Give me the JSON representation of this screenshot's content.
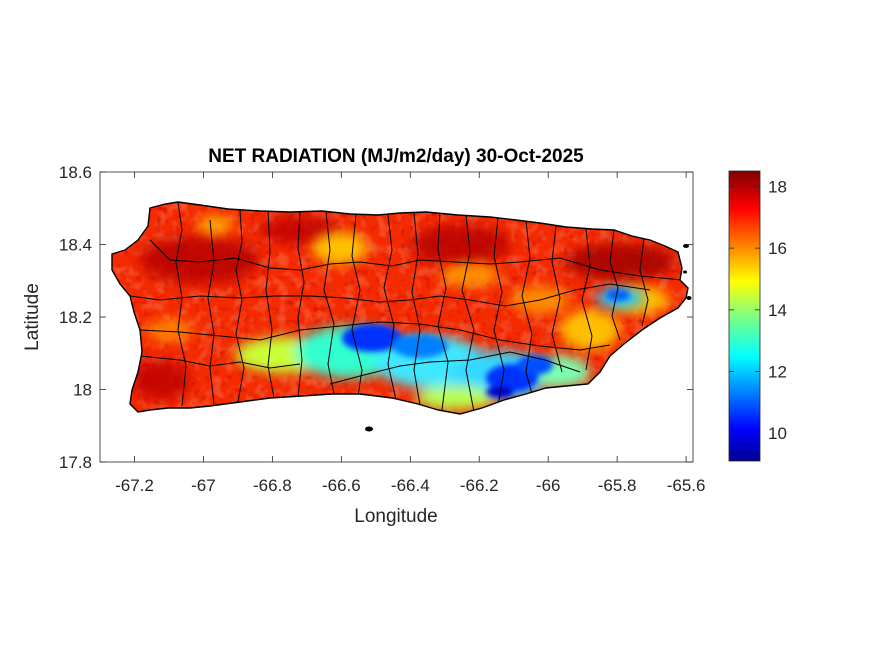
{
  "title": "NET RADIATION (MJ/m2/day) 30-Oct-2025",
  "xlabel": "Longitude",
  "ylabel": "Latitude",
  "x_ticks": [
    "-67.2",
    "-67",
    "-66.8",
    "-66.6",
    "-66.4",
    "-66.2",
    "-66",
    "-65.8",
    "-65.6"
  ],
  "y_ticks": [
    "18.6",
    "18.4",
    "18.2",
    "18",
    "17.8"
  ],
  "colorbar_ticks": [
    "18",
    "16",
    "14",
    "12",
    "10"
  ],
  "chart_data": {
    "type": "heatmap",
    "title": "NET RADIATION (MJ/m2/day) 30-Oct-2025",
    "xlabel": "Longitude",
    "ylabel": "Latitude",
    "xlim": [
      -67.3,
      -65.58
    ],
    "ylim": [
      17.8,
      18.6
    ],
    "x_ticks": [
      -67.2,
      -67,
      -66.8,
      -66.6,
      -66.4,
      -66.2,
      -66,
      -65.8,
      -65.6
    ],
    "y_ticks": [
      17.8,
      18,
      18.2,
      18.4,
      18.6
    ],
    "colormap": "jet",
    "color_range": [
      9.1,
      18.5
    ],
    "colorbar_ticks": [
      10,
      12,
      14,
      16,
      18
    ],
    "grid": false,
    "background_color": "#ffffff",
    "boundary_color": "#000000"
  }
}
